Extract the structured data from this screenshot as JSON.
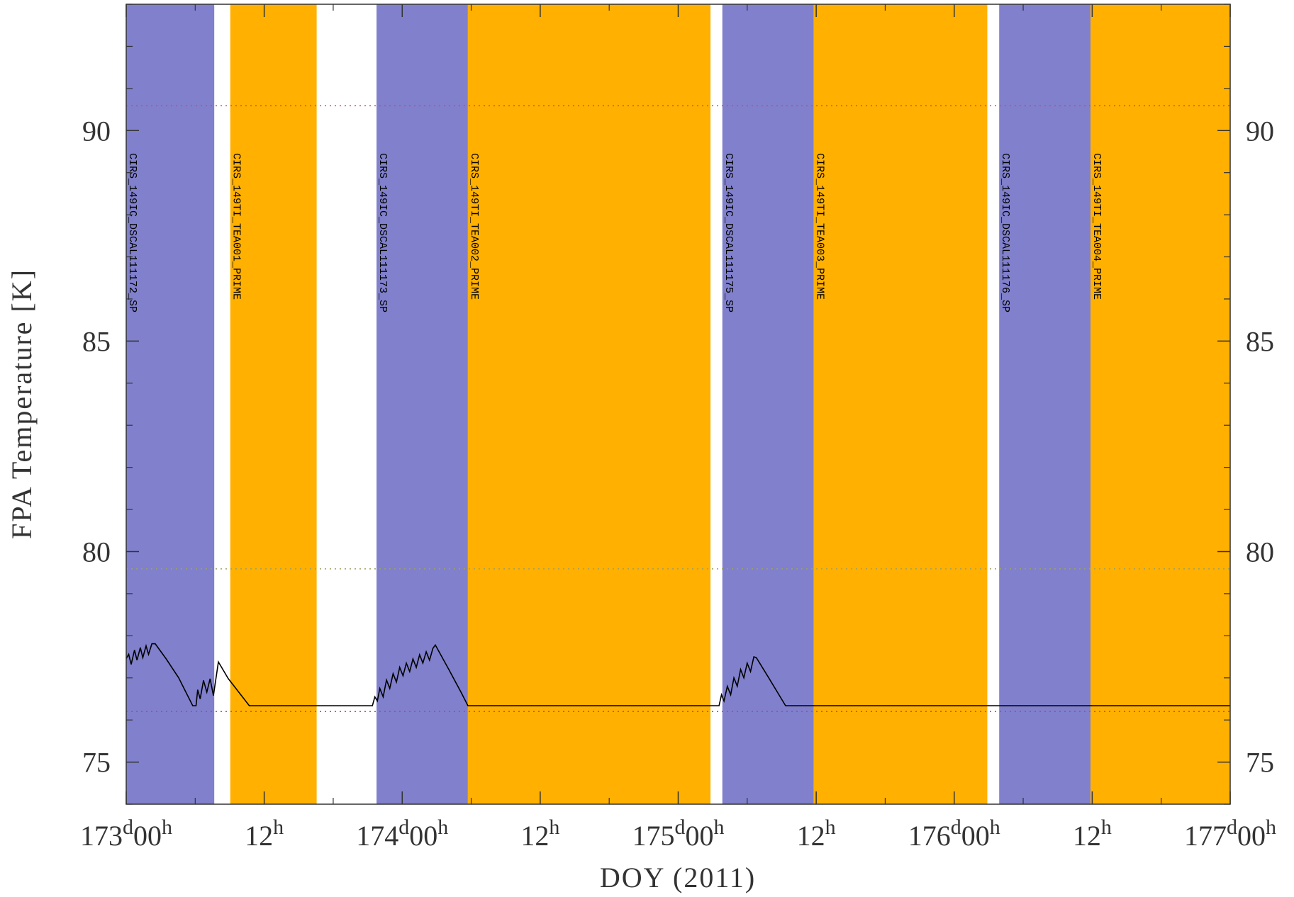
{
  "chart_data": {
    "type": "line",
    "x_label": "DOY (2011)",
    "y_label": "FPA Temperature [K]",
    "xlim": [
      173,
      177
    ],
    "ylim": [
      74,
      93
    ],
    "xticks": [
      {
        "value": 173,
        "label": "173d00h"
      },
      {
        "value": 173.5,
        "label": "12h"
      },
      {
        "value": 174,
        "label": "174d00h"
      },
      {
        "value": 174.5,
        "label": "12h"
      },
      {
        "value": 175,
        "label": "175d00h"
      },
      {
        "value": 175.5,
        "label": "12h"
      },
      {
        "value": 176,
        "label": "176d00h"
      },
      {
        "value": 176.5,
        "label": "12h"
      },
      {
        "value": 177,
        "label": "177d00h"
      }
    ],
    "xminorticks": [
      173.25,
      173.75,
      174.25,
      174.75,
      175.25,
      175.75,
      176.25,
      176.75
    ],
    "yticks": [
      75,
      80,
      85,
      90
    ],
    "yminorticks": [
      74,
      76,
      77,
      78,
      79,
      81,
      82,
      83,
      84,
      86,
      87,
      88,
      89,
      91,
      92,
      93
    ],
    "bands": [
      {
        "start": 173.0,
        "end": 173.319,
        "color": "#8080cc",
        "label": "CIRS_149IC_DSCAL111172_SP"
      },
      {
        "start": 173.377,
        "end": 173.69,
        "color": "#ffb000",
        "label": "CIRS_149TI_TEA001_PRIME"
      },
      {
        "start": 173.907,
        "end": 174.238,
        "color": "#8080cc",
        "label": "CIRS_149IC_DSCAL111173_SP"
      },
      {
        "start": 174.238,
        "end": 175.117,
        "color": "#ffb000",
        "label": "CIRS_149TI_TEA002_PRIME"
      },
      {
        "start": 175.16,
        "end": 175.491,
        "color": "#8080cc",
        "label": "CIRS_149IC_DSCAL111175_SP"
      },
      {
        "start": 175.491,
        "end": 176.12,
        "color": "#ffb000",
        "label": "CIRS_149TI_TEA003_PRIME"
      },
      {
        "start": 176.163,
        "end": 176.494,
        "color": "#8080cc",
        "label": "CIRS_149IC_DSCAL111176_SP"
      },
      {
        "start": 176.494,
        "end": 177.0,
        "color": "#ffb000",
        "label": "CIRS_149TI_TEA004_PRIME"
      }
    ],
    "reference_lines": [
      {
        "value": 90.59,
        "color": "#e04060"
      },
      {
        "value": 79.59,
        "color": "#a0a060"
      },
      {
        "value": 76.2,
        "color": "#c04080"
      }
    ],
    "series": [
      {
        "color": "#000000",
        "x": [
          173.0,
          173.009,
          173.018,
          173.03,
          173.039,
          173.051,
          173.06,
          173.072,
          173.081,
          173.093,
          173.105,
          173.145,
          173.19,
          173.241,
          173.253,
          173.259,
          173.268,
          173.28,
          173.292,
          173.304,
          173.316,
          173.334,
          173.37,
          173.446,
          173.892,
          173.901,
          173.91,
          173.919,
          173.931,
          173.943,
          173.955,
          173.967,
          173.979,
          173.991,
          174.003,
          174.015,
          174.027,
          174.039,
          174.051,
          174.063,
          174.075,
          174.087,
          174.099,
          174.111,
          174.12,
          174.169,
          174.214,
          174.238,
          175.148,
          175.157,
          175.166,
          175.178,
          175.19,
          175.202,
          175.214,
          175.226,
          175.238,
          175.25,
          175.262,
          175.274,
          175.283,
          175.328,
          175.389,
          177.0
        ],
        "values": [
          77.46,
          77.56,
          77.32,
          77.66,
          77.42,
          77.72,
          77.48,
          77.76,
          77.56,
          77.81,
          77.81,
          77.45,
          77.0,
          76.34,
          76.34,
          76.72,
          76.5,
          76.94,
          76.66,
          76.98,
          76.58,
          77.38,
          76.98,
          76.34,
          76.34,
          76.55,
          76.45,
          76.75,
          76.55,
          76.95,
          76.75,
          77.1,
          76.9,
          77.25,
          77.05,
          77.35,
          77.15,
          77.45,
          77.25,
          77.55,
          77.35,
          77.62,
          77.42,
          77.7,
          77.78,
          77.2,
          76.65,
          76.34,
          76.34,
          76.6,
          76.45,
          76.8,
          76.6,
          77.0,
          76.8,
          77.2,
          77.0,
          77.35,
          77.15,
          77.5,
          77.48,
          77.0,
          76.34,
          76.34
        ]
      }
    ]
  }
}
